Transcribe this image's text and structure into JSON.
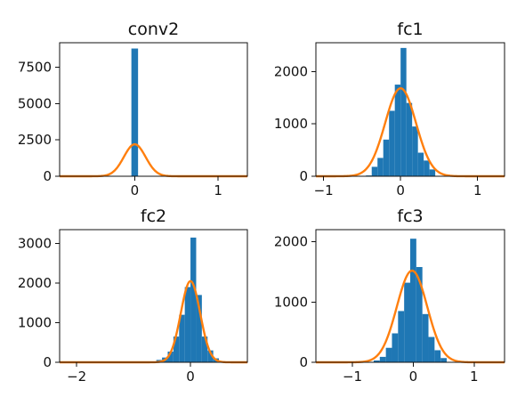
{
  "colors": {
    "histogram": "#1f77b4",
    "fit_curve": "#ff7f0e"
  },
  "chart_data": [
    {
      "type": "bar",
      "title": "conv2",
      "xlim": [
        -0.9,
        1.35
      ],
      "ylim": [
        0,
        9200
      ],
      "xticks": [
        0,
        1
      ],
      "xtick_labels": [
        "0",
        "1"
      ],
      "yticks": [
        0,
        2500,
        5000,
        7500
      ],
      "ytick_labels": [
        "0",
        "2500",
        "5000",
        "7500"
      ],
      "histogram": {
        "bins": [
          [
            -0.1,
            0.0,
            20
          ],
          [
            -0.04,
            0.04,
            8800
          ],
          [
            0.0,
            0.1,
            20
          ]
        ]
      },
      "gaussian": {
        "mean": 0.0,
        "std": 0.13,
        "peak": 2200
      }
    },
    {
      "type": "bar",
      "title": "fc1",
      "xlim": [
        -1.1,
        1.35
      ],
      "ylim": [
        0,
        2550
      ],
      "xticks": [
        -1,
        0,
        1
      ],
      "xtick_labels": [
        "−1",
        "0",
        "1"
      ],
      "yticks": [
        0,
        1000,
        2000
      ],
      "ytick_labels": [
        "0",
        "1000",
        "2000"
      ],
      "histogram": {
        "bins": [
          [
            -0.45,
            -0.375,
            15
          ],
          [
            -0.375,
            -0.3,
            180
          ],
          [
            -0.3,
            -0.225,
            350
          ],
          [
            -0.225,
            -0.15,
            700
          ],
          [
            -0.15,
            -0.075,
            1250
          ],
          [
            -0.075,
            0.0,
            1750
          ],
          [
            0.0,
            0.075,
            2450
          ],
          [
            0.075,
            0.15,
            1400
          ],
          [
            0.15,
            0.225,
            950
          ],
          [
            0.225,
            0.3,
            450
          ],
          [
            0.3,
            0.375,
            300
          ],
          [
            0.375,
            0.45,
            130
          ]
        ]
      },
      "gaussian": {
        "mean": 0.0,
        "std": 0.2,
        "peak": 1680
      }
    },
    {
      "type": "bar",
      "title": "fc2",
      "xlim": [
        -2.3,
        1.0
      ],
      "ylim": [
        0,
        3350
      ],
      "xticks": [
        -2,
        0
      ],
      "xtick_labels": [
        "−2",
        "0"
      ],
      "yticks": [
        0,
        1000,
        2000,
        3000
      ],
      "ytick_labels": [
        "0",
        "1000",
        "2000",
        "3000"
      ],
      "histogram": {
        "bins": [
          [
            -0.6,
            -0.5,
            60
          ],
          [
            -0.5,
            -0.4,
            120
          ],
          [
            -0.4,
            -0.3,
            270
          ],
          [
            -0.3,
            -0.2,
            650
          ],
          [
            -0.2,
            -0.1,
            1200
          ],
          [
            -0.1,
            0.0,
            1900
          ],
          [
            0.0,
            0.1,
            3150
          ],
          [
            0.1,
            0.2,
            1700
          ],
          [
            0.2,
            0.3,
            650
          ],
          [
            0.3,
            0.4,
            300
          ],
          [
            0.4,
            0.5,
            100
          ],
          [
            0.5,
            0.6,
            30
          ]
        ]
      },
      "gaussian": {
        "mean": 0.0,
        "std": 0.17,
        "peak": 2050
      }
    },
    {
      "type": "bar",
      "title": "fc3",
      "xlim": [
        -1.6,
        1.5
      ],
      "ylim": [
        0,
        2200
      ],
      "xticks": [
        -1,
        0,
        1
      ],
      "xtick_labels": [
        "−1",
        "0",
        "1"
      ],
      "yticks": [
        0,
        1000,
        2000
      ],
      "ytick_labels": [
        "0",
        "1000",
        "2000"
      ],
      "histogram": {
        "bins": [
          [
            -0.65,
            -0.55,
            30
          ],
          [
            -0.55,
            -0.45,
            90
          ],
          [
            -0.45,
            -0.35,
            240
          ],
          [
            -0.35,
            -0.25,
            480
          ],
          [
            -0.25,
            -0.15,
            850
          ],
          [
            -0.15,
            -0.05,
            1320
          ],
          [
            -0.05,
            0.05,
            2050
          ],
          [
            0.05,
            0.15,
            1580
          ],
          [
            0.15,
            0.25,
            800
          ],
          [
            0.25,
            0.35,
            420
          ],
          [
            0.35,
            0.45,
            200
          ],
          [
            0.45,
            0.55,
            70
          ]
        ]
      },
      "gaussian": {
        "mean": -0.02,
        "std": 0.25,
        "peak": 1520
      }
    }
  ]
}
